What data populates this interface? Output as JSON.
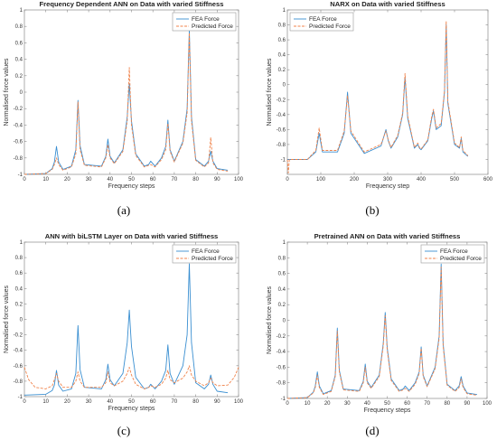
{
  "colors": {
    "fea": "#3a8fd1",
    "pred": "#f0834b"
  },
  "chart_data": [
    {
      "type": "line",
      "caption": "(a)",
      "title": "Frequency Dependent ANN on Data with varied Stiffness",
      "xlabel": "Frequency steps",
      "ylabel": "Normalised force values",
      "xlim": [
        0,
        100
      ],
      "ylim": [
        -1,
        1
      ],
      "xticks": [
        0,
        10,
        20,
        30,
        40,
        50,
        60,
        70,
        80,
        90,
        100
      ],
      "yticks": [
        -1,
        -0.8,
        -0.6,
        -0.4,
        -0.2,
        0,
        0.2,
        0.4,
        0.6,
        0.8,
        1
      ],
      "ytick_labels": [
        "-1",
        "-0.8",
        "-0.6",
        "-0.4",
        "-0.2",
        "0",
        "0.2",
        "0.4",
        "0.6",
        "0.8",
        "1"
      ],
      "legend": {
        "position": "top-right",
        "entries": [
          "FEA Force",
          "Predicted Force"
        ]
      },
      "series": [
        {
          "name": "FEA Force",
          "style": "solid",
          "x": [
            0,
            10,
            13,
            14,
            15,
            16,
            18,
            22,
            24,
            25,
            26,
            28,
            36,
            38,
            39,
            40,
            42,
            46,
            48,
            49,
            50,
            52,
            56,
            58,
            59,
            61,
            64,
            66,
            67,
            68,
            70,
            74,
            76,
            77,
            78,
            80,
            84,
            86,
            87,
            88,
            90,
            95
          ],
          "y": [
            -1,
            -0.99,
            -0.93,
            -0.85,
            -0.66,
            -0.85,
            -0.94,
            -0.9,
            -0.7,
            -0.1,
            -0.65,
            -0.88,
            -0.9,
            -0.78,
            -0.57,
            -0.78,
            -0.86,
            -0.7,
            -0.3,
            0.1,
            -0.35,
            -0.75,
            -0.9,
            -0.88,
            -0.84,
            -0.9,
            -0.8,
            -0.66,
            -0.34,
            -0.7,
            -0.84,
            -0.6,
            -0.2,
            0.75,
            -0.3,
            -0.82,
            -0.9,
            -0.84,
            -0.72,
            -0.84,
            -0.93,
            -0.95
          ]
        },
        {
          "name": "Predicted Force",
          "style": "dashed",
          "x": [
            0,
            10,
            13,
            14,
            15,
            16,
            18,
            22,
            24,
            25,
            26,
            28,
            36,
            38,
            39,
            40,
            42,
            46,
            48,
            49,
            50,
            52,
            56,
            58,
            59,
            61,
            64,
            66,
            67,
            68,
            70,
            74,
            76,
            77,
            78,
            80,
            84,
            86,
            87,
            88,
            90,
            95
          ],
          "y": [
            -1,
            -0.99,
            -0.94,
            -0.88,
            -0.8,
            -0.88,
            -0.95,
            -0.91,
            -0.75,
            -0.12,
            -0.7,
            -0.89,
            -0.91,
            -0.8,
            -0.64,
            -0.8,
            -0.87,
            -0.72,
            -0.35,
            0.3,
            -0.4,
            -0.77,
            -0.91,
            -0.89,
            -0.88,
            -0.91,
            -0.82,
            -0.7,
            -0.38,
            -0.72,
            -0.85,
            -0.62,
            -0.25,
            0.72,
            -0.35,
            -0.83,
            -0.91,
            -0.86,
            -0.55,
            -0.86,
            -0.94,
            -0.96
          ]
        }
      ]
    },
    {
      "type": "line",
      "caption": "(b)",
      "title": "NARX on Data with varied Stiffness",
      "xlabel": "Frequency step",
      "ylabel": "Normalised force values",
      "xlim": [
        0,
        600
      ],
      "ylim": [
        -1.2,
        1
      ],
      "xticks": [
        0,
        100,
        200,
        300,
        400,
        500,
        600
      ],
      "yticks": [
        -1,
        -0.8,
        -0.6,
        -0.4,
        -0.2,
        0,
        0.2,
        0.4,
        0.6,
        0.8,
        1
      ],
      "ytick_labels": [
        "-1",
        "-0.8",
        "-0.6",
        "-0.4",
        "-0.2",
        "0",
        "0.2",
        "0.4",
        "0.6",
        "0.8",
        "1"
      ],
      "legend": {
        "position": "top-left",
        "entries": [
          "FEA Force",
          "Predicted Force"
        ]
      },
      "series": [
        {
          "name": "FEA Force",
          "style": "solid",
          "x": [
            0,
            60,
            85,
            95,
            105,
            150,
            170,
            180,
            190,
            230,
            280,
            295,
            302,
            310,
            330,
            345,
            352,
            360,
            380,
            390,
            395,
            400,
            420,
            432,
            437,
            445,
            460,
            470,
            475,
            480,
            500,
            515,
            520,
            525,
            540
          ],
          "y": [
            -1,
            -1,
            -0.9,
            -0.65,
            -0.9,
            -0.9,
            -0.65,
            -0.1,
            -0.65,
            -0.92,
            -0.82,
            -0.6,
            -0.75,
            -0.85,
            -0.7,
            -0.4,
            0.1,
            -0.45,
            -0.85,
            -0.8,
            -0.85,
            -0.87,
            -0.75,
            -0.45,
            -0.35,
            -0.6,
            -0.55,
            -0.1,
            0.8,
            -0.25,
            -0.8,
            -0.85,
            -0.72,
            -0.9,
            -0.96
          ]
        },
        {
          "name": "Predicted Force",
          "style": "dashed",
          "x": [
            0,
            3,
            6,
            60,
            85,
            95,
            105,
            150,
            170,
            180,
            190,
            230,
            280,
            295,
            302,
            310,
            330,
            345,
            352,
            360,
            380,
            390,
            395,
            400,
            420,
            432,
            437,
            445,
            460,
            470,
            475,
            480,
            500,
            515,
            520,
            525,
            540
          ],
          "y": [
            -1,
            -1.18,
            -1,
            -1,
            -0.88,
            -0.58,
            -0.88,
            -0.88,
            -0.62,
            -0.15,
            -0.62,
            -0.9,
            -0.8,
            -0.62,
            -0.74,
            -0.84,
            -0.68,
            -0.38,
            0.15,
            -0.42,
            -0.84,
            -0.78,
            -0.84,
            -0.86,
            -0.74,
            -0.42,
            -0.33,
            -0.58,
            -0.52,
            -0.08,
            0.85,
            -0.22,
            -0.78,
            -0.84,
            -0.7,
            -0.88,
            -0.95
          ]
        }
      ]
    },
    {
      "type": "line",
      "caption": "(c)",
      "title": "ANN with biLSTM Layer on Data with varied Stiffness",
      "xlabel": "Frequency steps",
      "ylabel": "Normalised force values",
      "xlim": [
        0,
        100
      ],
      "ylim": [
        -1,
        1
      ],
      "xticks": [
        0,
        10,
        20,
        30,
        40,
        50,
        60,
        70,
        80,
        90,
        100
      ],
      "yticks": [
        -1,
        -0.8,
        -0.6,
        -0.4,
        -0.2,
        0,
        0.2,
        0.4,
        0.6,
        0.8,
        1
      ],
      "ytick_labels": [
        "-1",
        "-0.8",
        "-0.6",
        "-0.4",
        "-0.2",
        "0",
        "0.2",
        "0.4",
        "0.6",
        "0.8",
        "1"
      ],
      "legend": {
        "position": "top-right",
        "entries": [
          "FEA Force",
          "Predicted Force"
        ]
      },
      "series": [
        {
          "name": "FEA Force",
          "style": "solid",
          "x": [
            0,
            10,
            13,
            14,
            15,
            16,
            18,
            22,
            24,
            25,
            26,
            28,
            36,
            38,
            39,
            40,
            42,
            46,
            48,
            49,
            50,
            52,
            56,
            58,
            59,
            61,
            64,
            66,
            67,
            68,
            70,
            74,
            76,
            77,
            78,
            80,
            84,
            86,
            87,
            88,
            90,
            95
          ],
          "y": [
            -0.98,
            -0.97,
            -0.92,
            -0.85,
            -0.66,
            -0.85,
            -0.93,
            -0.9,
            -0.7,
            -0.08,
            -0.65,
            -0.88,
            -0.9,
            -0.78,
            -0.58,
            -0.78,
            -0.86,
            -0.7,
            -0.3,
            0.12,
            -0.35,
            -0.75,
            -0.9,
            -0.88,
            -0.84,
            -0.9,
            -0.8,
            -0.66,
            -0.33,
            -0.7,
            -0.84,
            -0.6,
            -0.2,
            0.72,
            -0.3,
            -0.82,
            -0.9,
            -0.84,
            -0.72,
            -0.84,
            -0.93,
            -0.95
          ]
        },
        {
          "name": "Predicted Force",
          "style": "dashed",
          "x": [
            0,
            2,
            5,
            10,
            13,
            14,
            15,
            16,
            18,
            22,
            24,
            25,
            26,
            28,
            36,
            38,
            39,
            40,
            42,
            46,
            48,
            49,
            50,
            52,
            56,
            58,
            59,
            61,
            64,
            66,
            67,
            68,
            70,
            74,
            76,
            77,
            78,
            80,
            84,
            86,
            87,
            88,
            90,
            95,
            98,
            100
          ],
          "y": [
            -0.62,
            -0.78,
            -0.88,
            -0.9,
            -0.86,
            -0.78,
            -0.7,
            -0.8,
            -0.88,
            -0.88,
            -0.8,
            -0.68,
            -0.8,
            -0.88,
            -0.88,
            -0.82,
            -0.68,
            -0.82,
            -0.86,
            -0.8,
            -0.7,
            -0.62,
            -0.72,
            -0.84,
            -0.9,
            -0.88,
            -0.86,
            -0.88,
            -0.84,
            -0.76,
            -0.66,
            -0.78,
            -0.82,
            -0.76,
            -0.68,
            -0.6,
            -0.72,
            -0.8,
            -0.86,
            -0.82,
            -0.76,
            -0.82,
            -0.86,
            -0.85,
            -0.75,
            -0.62
          ]
        }
      ]
    },
    {
      "type": "line",
      "caption": "(d)",
      "title": "Pretrained ANN on Data with varied Stiffness",
      "xlabel": "Frequency steps",
      "ylabel": "Normalised force values",
      "xlim": [
        0,
        100
      ],
      "ylim": [
        -1,
        1
      ],
      "xticks": [
        0,
        10,
        20,
        30,
        40,
        50,
        60,
        70,
        80,
        90,
        100
      ],
      "yticks": [
        -1,
        -0.8,
        -0.6,
        -0.4,
        -0.2,
        0,
        0.2,
        0.4,
        0.6,
        0.8,
        1
      ],
      "ytick_labels": [
        "-1",
        "-0.8",
        "-0.6",
        "-0.4",
        "-0.2",
        "0",
        "0.2",
        "0.4",
        "0.6",
        "0.8",
        "1"
      ],
      "legend": {
        "position": "top-right",
        "entries": [
          "FEA Force",
          "Predicted Force"
        ]
      },
      "series": [
        {
          "name": "FEA Force",
          "style": "solid",
          "x": [
            0,
            10,
            13,
            14,
            15,
            16,
            18,
            22,
            24,
            25,
            26,
            28,
            36,
            38,
            39,
            40,
            42,
            46,
            48,
            49,
            50,
            52,
            56,
            58,
            59,
            61,
            64,
            66,
            67,
            68,
            70,
            74,
            76,
            77,
            78,
            80,
            84,
            86,
            87,
            88,
            90,
            95
          ],
          "y": [
            -1,
            -0.99,
            -0.92,
            -0.84,
            -0.66,
            -0.84,
            -0.94,
            -0.9,
            -0.7,
            -0.1,
            -0.64,
            -0.88,
            -0.9,
            -0.78,
            -0.56,
            -0.78,
            -0.86,
            -0.7,
            -0.3,
            0.1,
            -0.35,
            -0.75,
            -0.9,
            -0.88,
            -0.84,
            -0.9,
            -0.8,
            -0.66,
            -0.34,
            -0.7,
            -0.84,
            -0.6,
            -0.2,
            0.72,
            -0.3,
            -0.82,
            -0.9,
            -0.84,
            -0.72,
            -0.84,
            -0.93,
            -0.95
          ]
        },
        {
          "name": "Predicted Force",
          "style": "dashed",
          "x": [
            0,
            10,
            13,
            14,
            15,
            16,
            18,
            22,
            24,
            25,
            26,
            28,
            36,
            38,
            39,
            40,
            42,
            46,
            48,
            49,
            50,
            52,
            56,
            58,
            59,
            61,
            64,
            66,
            67,
            68,
            70,
            74,
            76,
            77,
            78,
            80,
            84,
            86,
            87,
            88,
            90,
            95
          ],
          "y": [
            -1,
            -0.99,
            -0.93,
            -0.86,
            -0.7,
            -0.86,
            -0.95,
            -0.91,
            -0.72,
            -0.14,
            -0.66,
            -0.89,
            -0.91,
            -0.8,
            -0.6,
            -0.8,
            -0.87,
            -0.72,
            -0.33,
            0.06,
            -0.38,
            -0.77,
            -0.91,
            -0.89,
            -0.87,
            -0.91,
            -0.82,
            -0.68,
            -0.36,
            -0.72,
            -0.85,
            -0.62,
            -0.23,
            0.68,
            -0.33,
            -0.83,
            -0.91,
            -0.86,
            -0.75,
            -0.86,
            -0.94,
            -0.96
          ]
        }
      ]
    }
  ]
}
